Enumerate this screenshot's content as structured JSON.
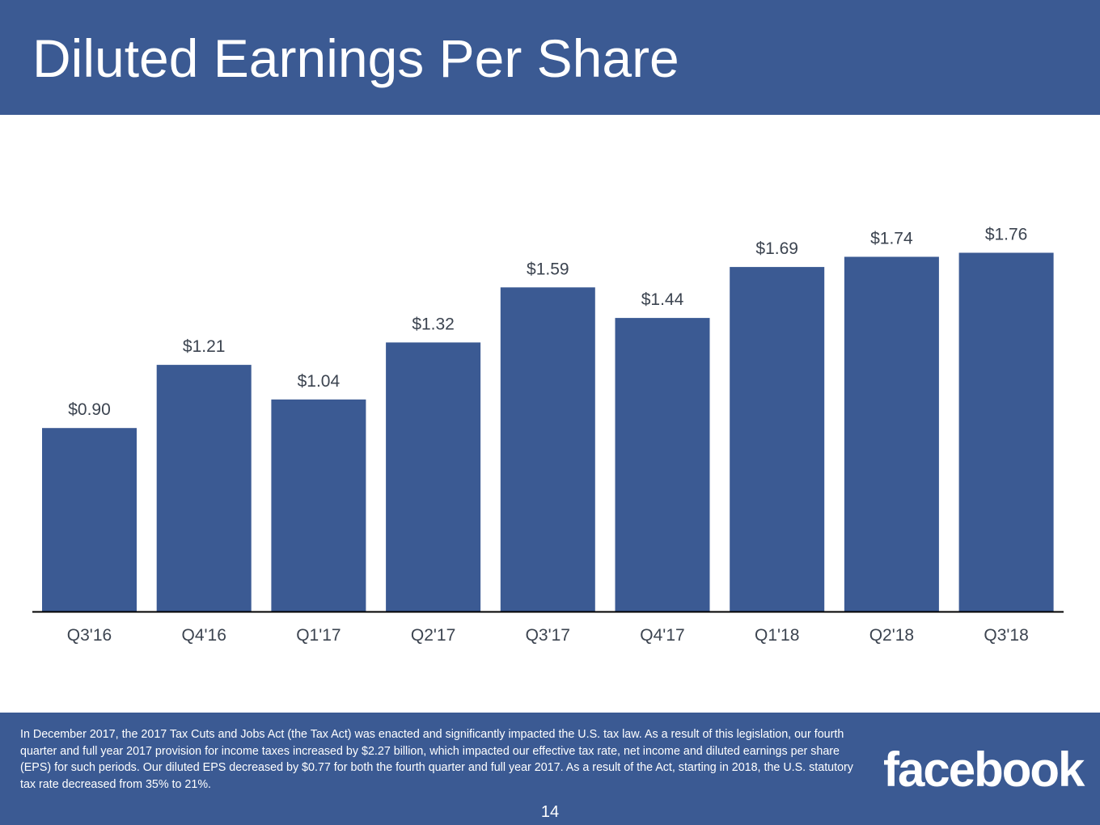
{
  "slide": {
    "title": "Diluted Earnings Per Share",
    "footnote": "In December 2017, the 2017 Tax Cuts and Jobs Act (the Tax Act) was enacted and significantly impacted the U.S. tax law. As a result of this legislation, our fourth quarter and full year 2017 provision for income taxes increased by $2.27 billion, which impacted our effective tax rate, net income and diluted earnings per share (EPS) for such periods. Our diluted EPS decreased by $0.77 for both the fourth quarter and full year 2017. As a result of the Act, starting in 2018, the U.S. statutory tax rate decreased from 35% to 21%.",
    "logo_text": "facebook",
    "page_number": "14"
  },
  "colors": {
    "brand": "#3b5a93",
    "bar": "#3b5a93",
    "label_text": "#3c4450",
    "axis_line": "#000000"
  },
  "chart_data": {
    "type": "bar",
    "categories": [
      "Q3'16",
      "Q4'16",
      "Q1'17",
      "Q2'17",
      "Q3'17",
      "Q4'17",
      "Q1'18",
      "Q2'18",
      "Q3'18"
    ],
    "values": [
      0.9,
      1.21,
      1.04,
      1.32,
      1.59,
      1.44,
      1.69,
      1.74,
      1.76
    ],
    "data_labels": [
      "$0.90",
      "$1.21",
      "$1.04",
      "$1.32",
      "$1.59",
      "$1.44",
      "$1.69",
      "$1.74",
      "$1.76"
    ],
    "title": "",
    "xlabel": "",
    "ylabel": "",
    "ylim": [
      0,
      2
    ],
    "grid": false,
    "legend": "none"
  }
}
